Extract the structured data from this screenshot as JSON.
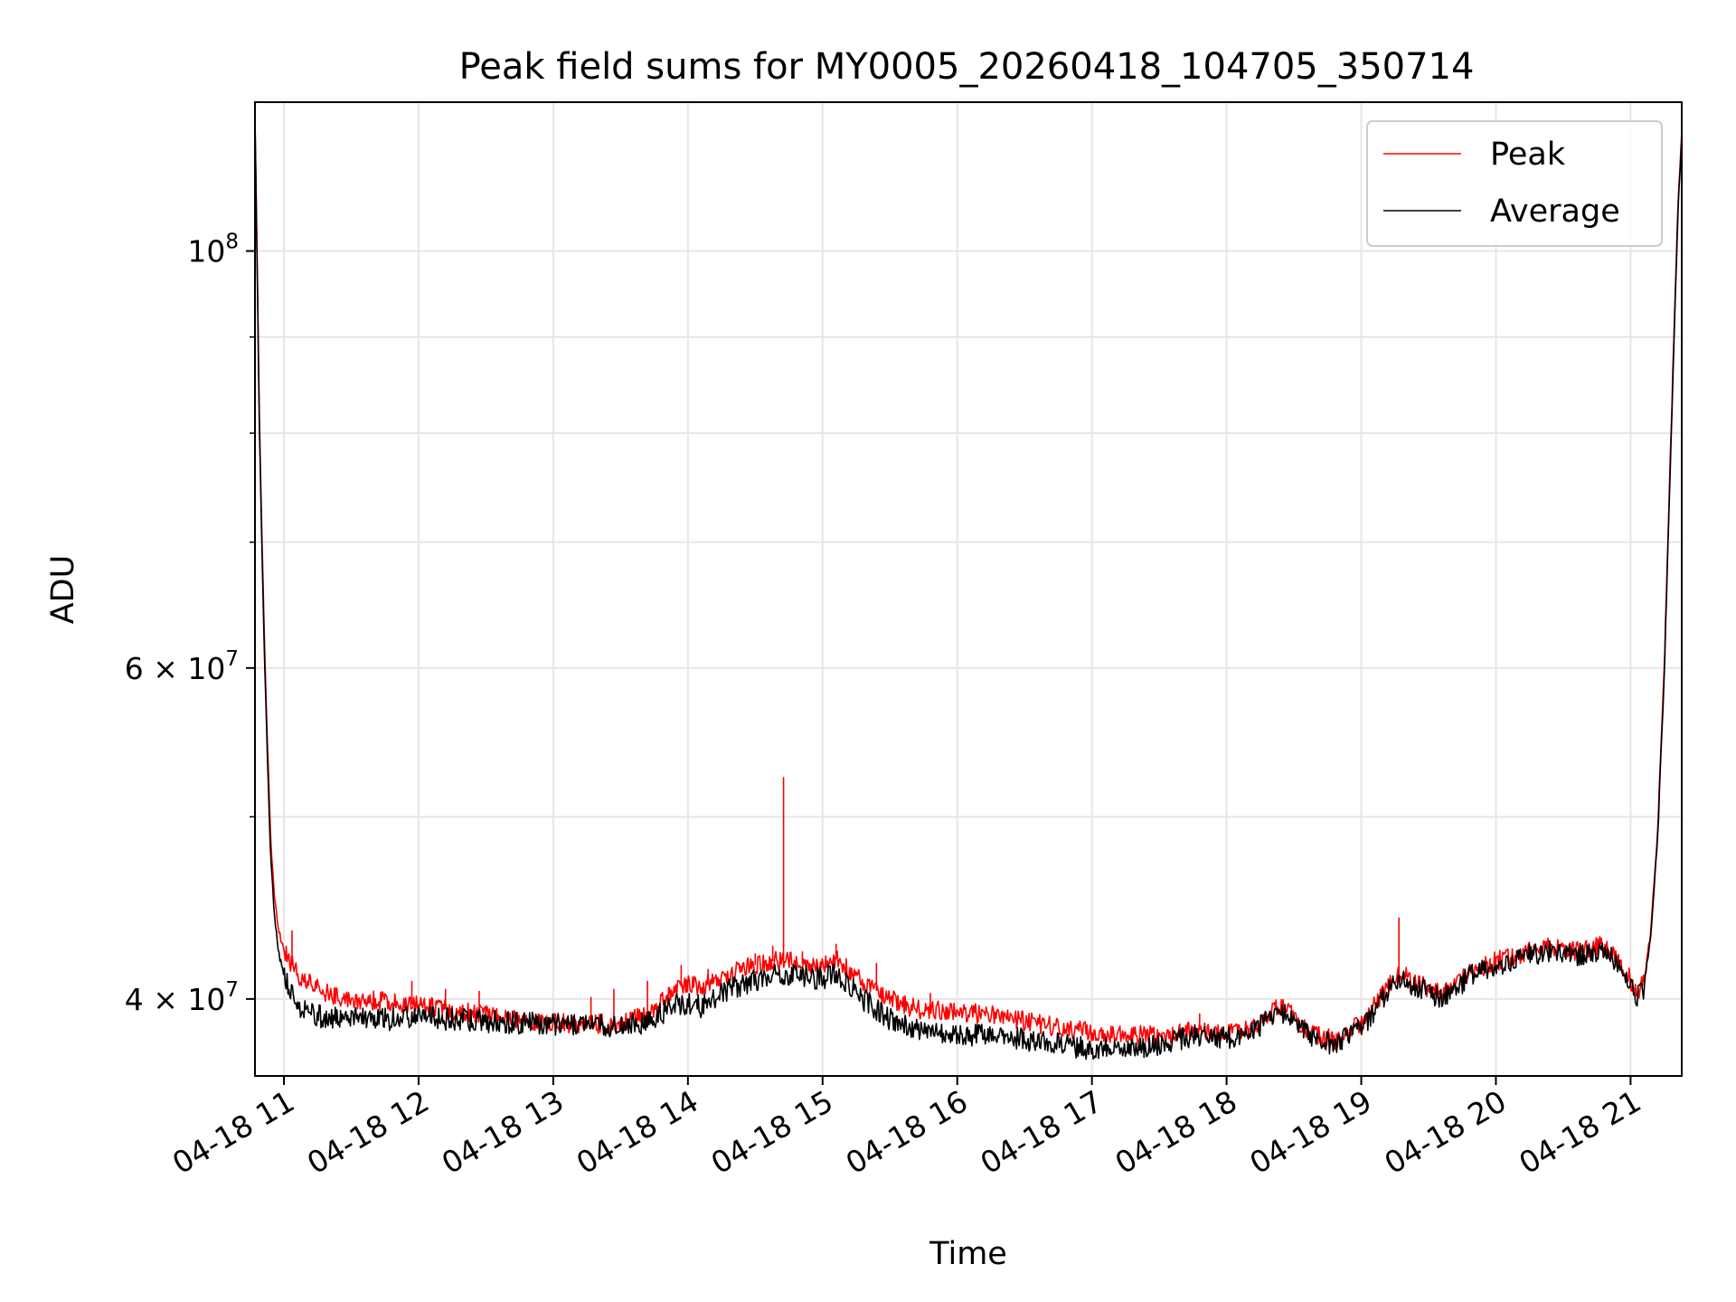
{
  "chart_data": {
    "type": "line",
    "title": "Peak field sums for MY0005_20260418_104705_350714",
    "xlabel": "Time",
    "ylabel": "ADU",
    "x_domain": [
      "2026-04-18 10:47:05",
      "2026-04-18 21:23:00"
    ],
    "xlim_hours": [
      10.785,
      21.38
    ],
    "ylim": [
      36400000,
      120000000
    ],
    "yscale": "log",
    "grid": true,
    "legend_position": "upper right",
    "x_ticks": [
      {
        "hour": 11,
        "label": "04-18 11"
      },
      {
        "hour": 12,
        "label": "04-18 12"
      },
      {
        "hour": 13,
        "label": "04-18 13"
      },
      {
        "hour": 14,
        "label": "04-18 14"
      },
      {
        "hour": 15,
        "label": "04-18 15"
      },
      {
        "hour": 16,
        "label": "04-18 16"
      },
      {
        "hour": 17,
        "label": "04-18 17"
      },
      {
        "hour": 18,
        "label": "04-18 18"
      },
      {
        "hour": 19,
        "label": "04-18 19"
      },
      {
        "hour": 20,
        "label": "04-18 20"
      },
      {
        "hour": 21,
        "label": "04-18 21"
      }
    ],
    "y_major_ticks": [
      {
        "value": 40000000,
        "base": "4",
        "exp": "7"
      },
      {
        "value": 60000000,
        "base": "6",
        "exp": "7"
      },
      {
        "value": 100000000,
        "base": "",
        "exp": "8"
      }
    ],
    "y_minor_ticks": [
      50000000,
      70000000,
      80000000,
      90000000
    ],
    "series": [
      {
        "name": "Peak",
        "color": "#ff0000",
        "x": [
          10.785,
          10.8,
          10.82,
          10.85,
          10.88,
          10.9,
          10.93,
          10.96,
          11.0,
          11.05,
          11.1,
          11.2,
          11.3,
          11.5,
          11.7,
          12.0,
          12.3,
          12.6,
          12.9,
          13.2,
          13.5,
          13.7,
          13.9,
          14.0,
          14.1,
          14.3,
          14.5,
          14.7,
          14.9,
          15.0,
          15.1,
          15.2,
          15.3,
          15.5,
          15.7,
          16.0,
          16.3,
          16.6,
          16.9,
          17.2,
          17.5,
          17.8,
          18.0,
          18.2,
          18.4,
          18.6,
          18.8,
          19.0,
          19.2,
          19.3,
          19.4,
          19.6,
          19.8,
          20.0,
          20.2,
          20.4,
          20.6,
          20.8,
          20.95,
          21.05,
          21.1,
          21.15,
          21.2,
          21.25,
          21.3,
          21.35,
          21.38
        ],
        "y": [
          118000000,
          100000000,
          80000000,
          64000000,
          54000000,
          49000000,
          45200000,
          43500000,
          42500000,
          41800000,
          41200000,
          40700000,
          40300000,
          40000000,
          39900000,
          39700000,
          39400000,
          39200000,
          38900000,
          38800000,
          38800000,
          39300000,
          40400000,
          40800000,
          40600000,
          41300000,
          41700000,
          42000000,
          41700000,
          41600000,
          42000000,
          41400000,
          40800000,
          40000000,
          39500000,
          39400000,
          39200000,
          38800000,
          38500000,
          38300000,
          38300000,
          38500000,
          38300000,
          38700000,
          39700000,
          38500000,
          38000000,
          38800000,
          40600000,
          41300000,
          40800000,
          40200000,
          41300000,
          41900000,
          42300000,
          42600000,
          42400000,
          42700000,
          41600000,
          40300000,
          40800000,
          43500000,
          49000000,
          60000000,
          80000000,
          105000000,
          116000000
        ],
        "spikes": [
          {
            "x": 11.06,
            "y": 43500000
          },
          {
            "x": 11.95,
            "y": 40900000
          },
          {
            "x": 12.2,
            "y": 40500000
          },
          {
            "x": 12.45,
            "y": 40400000
          },
          {
            "x": 13.28,
            "y": 40100000
          },
          {
            "x": 13.45,
            "y": 40500000
          },
          {
            "x": 13.7,
            "y": 40900000
          },
          {
            "x": 13.95,
            "y": 41700000
          },
          {
            "x": 14.15,
            "y": 41500000
          },
          {
            "x": 14.5,
            "y": 42300000
          },
          {
            "x": 14.63,
            "y": 42700000
          },
          {
            "x": 14.71,
            "y": 52500000
          },
          {
            "x": 14.85,
            "y": 42400000
          },
          {
            "x": 15.1,
            "y": 42800000
          },
          {
            "x": 15.4,
            "y": 41800000
          },
          {
            "x": 15.8,
            "y": 40300000
          },
          {
            "x": 17.8,
            "y": 39300000
          },
          {
            "x": 19.28,
            "y": 44200000
          }
        ]
      },
      {
        "name": "Average",
        "color": "#000000",
        "x": [
          10.785,
          10.8,
          10.82,
          10.85,
          10.88,
          10.9,
          10.93,
          10.96,
          11.0,
          11.05,
          11.1,
          11.2,
          11.3,
          11.5,
          11.7,
          12.0,
          12.3,
          12.6,
          12.9,
          13.2,
          13.5,
          13.7,
          13.9,
          14.0,
          14.1,
          14.3,
          14.5,
          14.7,
          14.9,
          15.0,
          15.1,
          15.2,
          15.3,
          15.5,
          15.7,
          16.0,
          16.3,
          16.6,
          16.9,
          17.2,
          17.5,
          17.8,
          18.0,
          18.2,
          18.4,
          18.6,
          18.8,
          19.0,
          19.2,
          19.3,
          19.4,
          19.6,
          19.8,
          20.0,
          20.2,
          20.4,
          20.6,
          20.8,
          20.95,
          21.05,
          21.1,
          21.15,
          21.2,
          21.25,
          21.3,
          21.35,
          21.38
        ],
        "y": [
          118000000,
          99000000,
          79000000,
          63000000,
          53000000,
          48000000,
          44200000,
          42300000,
          41200000,
          40400000,
          39700000,
          39300000,
          39100000,
          39100000,
          39000000,
          39100000,
          39000000,
          38900000,
          38800000,
          38800000,
          38700000,
          38900000,
          39700000,
          39800000,
          39600000,
          40500000,
          40900000,
          41300000,
          41100000,
          41000000,
          41300000,
          40700000,
          40000000,
          39000000,
          38600000,
          38300000,
          38200000,
          38000000,
          37700000,
          37600000,
          37800000,
          38300000,
          38100000,
          38500000,
          39500000,
          38300000,
          37800000,
          38600000,
          40400000,
          41100000,
          40600000,
          40000000,
          41100000,
          41700000,
          42100000,
          42400000,
          42200000,
          42500000,
          41400000,
          40100000,
          40600000,
          43300000,
          48500000,
          59500000,
          79000000,
          104000000,
          115000000
        ]
      }
    ]
  }
}
